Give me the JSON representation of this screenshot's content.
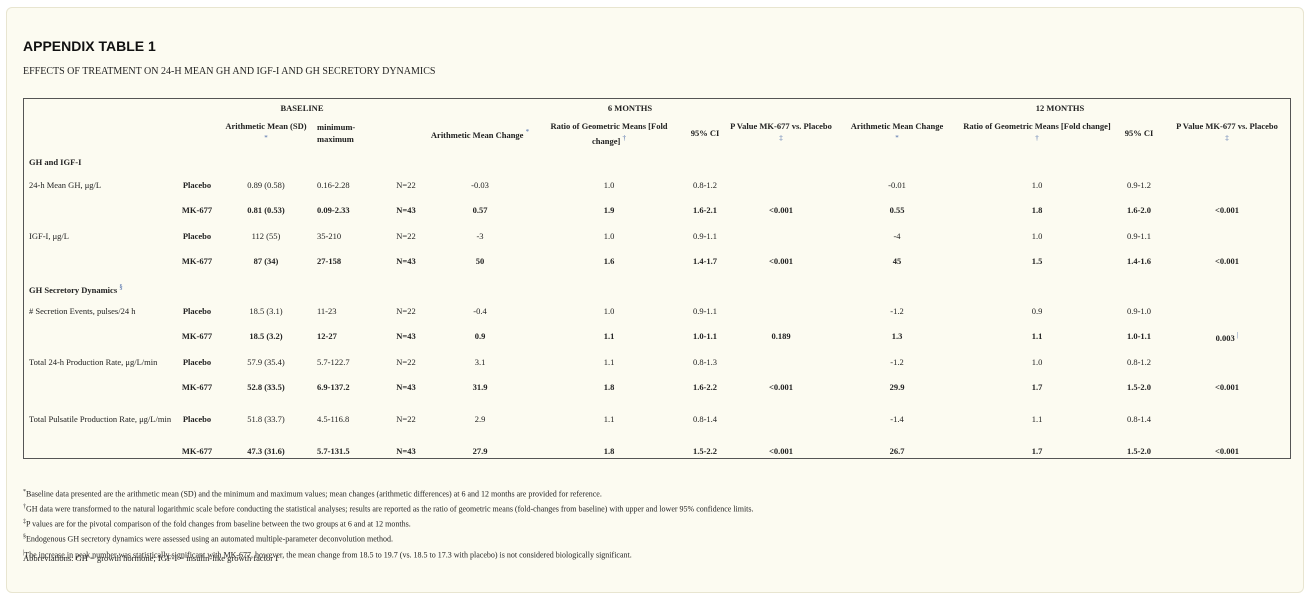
{
  "title": "APPENDIX TABLE 1",
  "subtitle": "EFFECTS OF TREATMENT ON 24-H MEAN GH AND IGF-I AND GH SECRETORY DYNAMICS",
  "header": {
    "baseline": "BASELINE",
    "six_months": "6 MONTHS",
    "twelve_months": "12 MONTHS",
    "arith_mean_sd": "Arithmetic Mean (SD)",
    "min_max": "minimum-maximum",
    "arith_mean_change": "Arithmetic Mean Change",
    "ratio_geo": "Ratio of Geometric Means [Fold change]",
    "ci": "95% CI",
    "p_value_6": "P Value MK-677 vs. Placebo",
    "arith_mean_change_12": "Arithmetic Mean Change",
    "ratio_geo_12": "Ratio of Geometric Means [Fold change]",
    "ci_12": "95% CI",
    "p_value_12": "P Value MK-677 vs. Placebo",
    "fn_star": "*",
    "fn_dagger": "†",
    "fn_ddagger": "‡",
    "fn_section": "§",
    "fn_pipe": "|"
  },
  "sections": [
    {
      "name": "GH and IGF-I",
      "rows": [
        {
          "label": "24-h Mean GH, μg/L",
          "placebo": [
            "Placebo",
            "0.89 (0.58)",
            "0.16-2.28",
            "N=22",
            "-0.03",
            "1.0",
            "0.8-1.2",
            "",
            "-0.01",
            "1.0",
            "0.9-1.2",
            ""
          ],
          "mk": [
            "MK-677",
            "0.81 (0.53)",
            "0.09-2.33",
            "N=43",
            "0.57",
            "1.9",
            "1.6-2.1",
            "<0.001",
            "0.55",
            "1.8",
            "1.6-2.0",
            "<0.001"
          ]
        },
        {
          "label": "IGF-I, μg/L",
          "placebo": [
            "Placebo",
            "112 (55)",
            "35-210",
            "N=22",
            "-3",
            "1.0",
            "0.9-1.1",
            "",
            "-4",
            "1.0",
            "0.9-1.1",
            ""
          ],
          "mk": [
            "MK-677",
            "87 (34)",
            "27-158",
            "N=43",
            "50",
            "1.6",
            "1.4-1.7",
            "<0.001",
            "45",
            "1.5",
            "1.4-1.6",
            "<0.001"
          ]
        }
      ]
    },
    {
      "name": "GH Secretory Dynamics",
      "rows": [
        {
          "label": "# Secretion Events, pulses/24 h",
          "placebo": [
            "Placebo",
            "18.5 (3.1)",
            "11-23",
            "N=22",
            "-0.4",
            "1.0",
            "0.9-1.1",
            "",
            "-1.2",
            "0.9",
            "0.9-1.0",
            ""
          ],
          "mk": [
            "MK-677",
            "18.5 (3.2)",
            "12-27",
            "N=43",
            "0.9",
            "1.1",
            "1.0-1.1",
            "0.189",
            "1.3",
            "1.1",
            "1.0-1.1",
            "0.003"
          ]
        },
        {
          "label": "Total 24-h Production Rate, μg/L/min",
          "placebo": [
            "Placebo",
            "57.9 (35.4)",
            "5.7-122.7",
            "N=22",
            "3.1",
            "1.1",
            "0.8-1.3",
            "",
            "-1.2",
            "1.0",
            "0.8-1.2",
            ""
          ],
          "mk": [
            "MK-677",
            "52.8 (33.5)",
            "6.9-137.2",
            "N=43",
            "31.9",
            "1.8",
            "1.6-2.2",
            "<0.001",
            "29.9",
            "1.7",
            "1.5-2.0",
            "<0.001"
          ]
        },
        {
          "label": "Total Pulsatile Production Rate, μg/L/min",
          "placebo": [
            "Placebo",
            "51.8 (33.7)",
            "4.5-116.8",
            "N=22",
            "2.9",
            "1.1",
            "0.8-1.4",
            "",
            "-1.4",
            "1.1",
            "0.8-1.4",
            ""
          ],
          "mk": [
            "MK-677",
            "47.3 (31.6)",
            "5.7-131.5",
            "N=43",
            "27.9",
            "1.8",
            "1.5-2.2",
            "<0.001",
            "26.7",
            "1.7",
            "1.5-2.0",
            "<0.001"
          ]
        }
      ]
    }
  ],
  "footnotes": [
    {
      "mark": "*",
      "text": "Baseline data presented are the arithmetic mean (SD) and the minimum and maximum values; mean changes (arithmetic differences) at 6 and 12 months are provided for reference."
    },
    {
      "mark": "†",
      "text": "GH data were transformed to the natural logarithmic scale before conducting the statistical analyses; results are reported as the ratio of geometric means (fold-changes from baseline) with upper and lower 95% confidence limits."
    },
    {
      "mark": "‡",
      "text": "P values are for the pivotal comparison of the fold changes from baseline between the two groups at 6 and at 12 months."
    },
    {
      "mark": "§",
      "text": "Endogenous GH secretory dynamics were assessed using an automated multiple-parameter deconvolution method."
    },
    {
      "mark": "|",
      "text": "The increase in peak number was statistically significant with MK-677, however, the mean change from 18.5 to 19.7 (vs. 18.5 to 17.3 with placebo) is not considered biologically significant."
    }
  ],
  "abbreviations": "Abbreviations: GH = growth hormone; IGF-I = insulin-like growth factor I"
}
